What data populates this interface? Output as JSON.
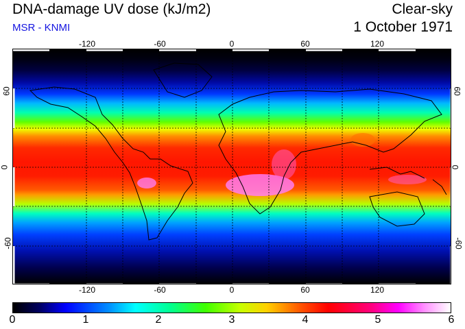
{
  "header": {
    "title": "DNA-damage UV dose (kJ/m2)",
    "source": "MSR - KNMI",
    "sky_condition": "Clear-sky",
    "date": "1 October 1971"
  },
  "map": {
    "projection": "equirectangular",
    "lon_range": [
      -180,
      180
    ],
    "lat_range": [
      -90,
      90
    ],
    "graticule_lat": [
      -60,
      -30,
      0,
      30,
      60
    ],
    "graticule_lon": [
      -120,
      -90,
      -60,
      -30,
      0,
      30,
      60,
      90,
      120,
      150
    ],
    "top_tick_labels": [
      "-120",
      "-60",
      "0",
      "60",
      "120"
    ],
    "bottom_tick_labels": [
      "-120",
      "-60",
      "0",
      "60",
      "120"
    ],
    "left_tick_labels": [
      "60",
      "0",
      "-60"
    ],
    "right_tick_labels": [
      "60",
      "0",
      "-60"
    ]
  },
  "colorbar": {
    "min": 0,
    "max": 6,
    "labels": [
      "0",
      "1",
      "2",
      "3",
      "4",
      "5",
      "6"
    ],
    "colors": [
      "#000000",
      "#0000ff",
      "#00ffff",
      "#40ff00",
      "#ffd000",
      "#ff0000",
      "#ff00ff",
      "#ffffff"
    ]
  }
}
